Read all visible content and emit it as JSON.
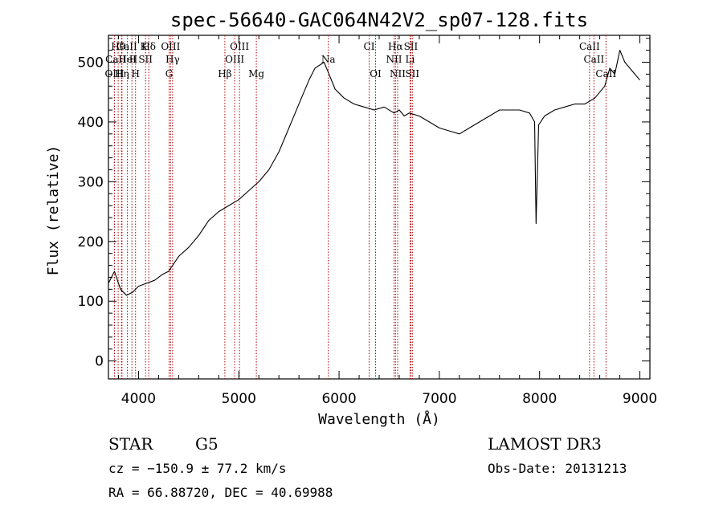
{
  "chart_data": {
    "type": "line",
    "title": "spec-56640-GAC064N42V2_sp07-128.fits",
    "xlabel": "Wavelength (Å)",
    "ylabel": "Flux (relative)",
    "xlim": [
      3700,
      9100
    ],
    "ylim": [
      -30,
      545
    ],
    "xticks": [
      4000,
      5000,
      6000,
      7000,
      8000,
      9000
    ],
    "xtick_labels": [
      "4000",
      "5000",
      "6000",
      "7000",
      "8000",
      "9000"
    ],
    "yticks": [
      0,
      100,
      200,
      300,
      400,
      500
    ],
    "ytick_labels": [
      "0",
      "100",
      "200",
      "300",
      "400",
      "500"
    ],
    "series": [
      {
        "name": "flux",
        "x": [
          3700,
          3760,
          3820,
          3880,
          3940,
          4000,
          4080,
          4160,
          4240,
          4300,
          4400,
          4500,
          4600,
          4700,
          4800,
          4900,
          5000,
          5100,
          5200,
          5300,
          5400,
          5500,
          5600,
          5700,
          5760,
          5850,
          5900,
          5960,
          6050,
          6150,
          6250,
          6350,
          6450,
          6550,
          6600,
          6650,
          6700,
          6800,
          6900,
          7000,
          7100,
          7200,
          7300,
          7400,
          7500,
          7600,
          7700,
          7800,
          7900,
          7950,
          7965,
          7990,
          8050,
          8150,
          8250,
          8350,
          8450,
          8550,
          8650,
          8700,
          8750,
          8800,
          8850,
          8900,
          8950,
          9000
        ],
        "y": [
          130,
          150,
          120,
          110,
          115,
          125,
          130,
          135,
          145,
          150,
          175,
          190,
          210,
          235,
          250,
          260,
          270,
          285,
          300,
          320,
          350,
          390,
          430,
          470,
          490,
          500,
          480,
          455,
          440,
          430,
          425,
          420,
          425,
          415,
          420,
          410,
          415,
          410,
          400,
          390,
          385,
          380,
          390,
          400,
          410,
          420,
          420,
          420,
          415,
          400,
          230,
          395,
          410,
          420,
          425,
          430,
          430,
          440,
          460,
          490,
          480,
          520,
          500,
          490,
          480,
          470
        ]
      }
    ],
    "spectral_lines": [
      {
        "name": "Hθ",
        "wave": 3797,
        "row": 0
      },
      {
        "name": "CaII H",
        "wave": 3830,
        "row": 1
      },
      {
        "name": "CaII K",
        "wave": 3934,
        "row": 0
      },
      {
        "name": "HeI",
        "wave": 3889,
        "row": 1
      },
      {
        "name": "SII",
        "wave": 4070,
        "row": 1
      },
      {
        "name": "Hδ",
        "wave": 4102,
        "row": 0
      },
      {
        "name": "OIII",
        "wave": 3760,
        "row": 2
      },
      {
        "name": "Hη",
        "wave": 3835,
        "row": 2
      },
      {
        "name": "H",
        "wave": 3970,
        "row": 2
      },
      {
        "name": "OIII",
        "wave": 4320,
        "row": 0
      },
      {
        "name": "Hγ",
        "wave": 4340,
        "row": 1
      },
      {
        "name": "G",
        "wave": 4305,
        "row": 2
      },
      {
        "name": "Hβ",
        "wave": 4861,
        "row": 2
      },
      {
        "name": "OIII",
        "wave": 4959,
        "row": 1
      },
      {
        "name": "OIII",
        "wave": 5007,
        "row": 0
      },
      {
        "name": "Mg",
        "wave": 5175,
        "row": 2
      },
      {
        "name": "Na",
        "wave": 5893,
        "row": 1
      },
      {
        "name": "CI",
        "wave": 6300,
        "row": 0
      },
      {
        "name": "OI",
        "wave": 6364,
        "row": 2
      },
      {
        "name": "Hα",
        "wave": 6563,
        "row": 0
      },
      {
        "name": "NII",
        "wave": 6548,
        "row": 1
      },
      {
        "name": "Li",
        "wave": 6708,
        "row": 1
      },
      {
        "name": "SII",
        "wave": 6716,
        "row": 0
      },
      {
        "name": "NII",
        "wave": 6584,
        "row": 2
      },
      {
        "name": "SII",
        "wave": 6731,
        "row": 2
      },
      {
        "name": "CaII",
        "wave": 8498,
        "row": 0
      },
      {
        "name": "CaII",
        "wave": 8542,
        "row": 1
      },
      {
        "name": "CaII",
        "wave": 8662,
        "row": 2
      }
    ]
  },
  "info": {
    "object_class": "STAR",
    "subclass": "G5",
    "survey": "LAMOST DR3",
    "cz_line": "cz = −150.9 ± 77.2 km/s",
    "obs_date": "Obs-Date: 20131213",
    "coords": "RA =  66.88720, DEC =  40.69988"
  },
  "colors": {
    "line_marker": "#b00000",
    "spectrum": "#000000",
    "axes": "#000000"
  }
}
